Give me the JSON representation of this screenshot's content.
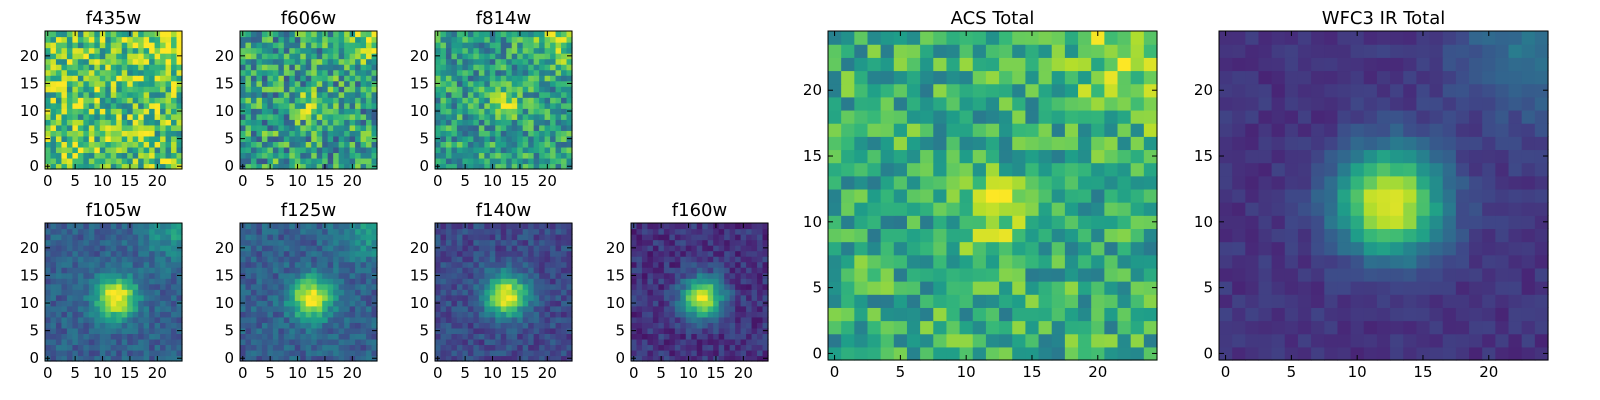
{
  "figure": {
    "colormap": "viridis",
    "colormap_stops": [
      "#440154",
      "#482878",
      "#3e4a89",
      "#31688e",
      "#26828e",
      "#1f9e89",
      "#35b779",
      "#6ece58",
      "#b5de2b",
      "#fde725"
    ],
    "background": "#ffffff"
  },
  "chart_data": [
    {
      "type": "heatmap",
      "title": "f435w",
      "xticks": [
        0,
        5,
        10,
        15,
        20
      ],
      "yticks": [
        0,
        5,
        10,
        15,
        20
      ],
      "xlim": [
        -0.5,
        24.5
      ],
      "ylim": [
        -0.5,
        24.5
      ],
      "grid": false,
      "image": {
        "size": [
          25,
          25
        ],
        "pattern": "noise",
        "center": [
          12,
          11
        ],
        "peak_value": 0.0,
        "source_width": 2.5,
        "noise_level": 0.3,
        "background_level": 0.72,
        "bright_corner": "top-right"
      }
    },
    {
      "type": "heatmap",
      "title": "f606w",
      "xticks": [
        0,
        5,
        10,
        15,
        20
      ],
      "yticks": [
        0,
        5,
        10,
        15,
        20
      ],
      "xlim": [
        -0.5,
        24.5
      ],
      "ylim": [
        -0.5,
        24.5
      ],
      "grid": false,
      "image": {
        "size": [
          25,
          25
        ],
        "pattern": "noise",
        "center": [
          12,
          11
        ],
        "peak_value": 0.2,
        "source_width": 2.0,
        "noise_level": 0.3,
        "background_level": 0.55,
        "bright_corner": "top-right"
      }
    },
    {
      "type": "heatmap",
      "title": "f814w",
      "xticks": [
        0,
        5,
        10,
        15,
        20
      ],
      "yticks": [
        0,
        5,
        10,
        15,
        20
      ],
      "xlim": [
        -0.5,
        24.5
      ],
      "ylim": [
        -0.5,
        24.5
      ],
      "grid": false,
      "image": {
        "size": [
          25,
          25
        ],
        "pattern": "point-source",
        "center": [
          12.5,
          11
        ],
        "peak_value": 0.45,
        "source_width": 1.6,
        "noise_level": 0.25,
        "background_level": 0.55,
        "bright_corner": "top-right"
      }
    },
    {
      "type": "heatmap",
      "title": "f105w",
      "xticks": [
        0,
        5,
        10,
        15,
        20
      ],
      "yticks": [
        0,
        5,
        10,
        15,
        20
      ],
      "xlim": [
        -0.5,
        24.5
      ],
      "ylim": [
        -0.5,
        24.5
      ],
      "grid": false,
      "image": {
        "size": [
          25,
          25
        ],
        "pattern": "point-source",
        "center": [
          12.5,
          11
        ],
        "peak_value": 0.75,
        "source_width": 2.6,
        "noise_level": 0.1,
        "background_level": 0.3,
        "bright_corner": "top-right"
      }
    },
    {
      "type": "heatmap",
      "title": "f125w",
      "xticks": [
        0,
        5,
        10,
        15,
        20
      ],
      "yticks": [
        0,
        5,
        10,
        15,
        20
      ],
      "xlim": [
        -0.5,
        24.5
      ],
      "ylim": [
        -0.5,
        24.5
      ],
      "grid": false,
      "image": {
        "size": [
          25,
          25
        ],
        "pattern": "point-source",
        "center": [
          12.5,
          11
        ],
        "peak_value": 0.75,
        "source_width": 2.6,
        "noise_level": 0.11,
        "background_level": 0.3,
        "bright_corner": "top-right"
      }
    },
    {
      "type": "heatmap",
      "title": "f140w",
      "xticks": [
        0,
        5,
        10,
        15,
        20
      ],
      "yticks": [
        0,
        5,
        10,
        15,
        20
      ],
      "xlim": [
        -0.5,
        24.5
      ],
      "ylim": [
        -0.5,
        24.5
      ],
      "grid": false,
      "image": {
        "size": [
          25,
          25
        ],
        "pattern": "point-source",
        "center": [
          12.5,
          11.5
        ],
        "peak_value": 0.78,
        "source_width": 2.7,
        "noise_level": 0.1,
        "background_level": 0.22,
        "bright_corner": "none"
      }
    },
    {
      "type": "heatmap",
      "title": "f160w",
      "xticks": [
        0,
        5,
        10,
        15,
        20
      ],
      "yticks": [
        0,
        5,
        10,
        15,
        20
      ],
      "xlim": [
        -0.5,
        24.5
      ],
      "ylim": [
        -0.5,
        24.5
      ],
      "grid": false,
      "image": {
        "size": [
          25,
          25
        ],
        "pattern": "point-source",
        "center": [
          12.5,
          11
        ],
        "peak_value": 0.82,
        "source_width": 2.6,
        "noise_level": 0.1,
        "background_level": 0.15,
        "bright_corner": "none"
      }
    },
    {
      "type": "heatmap",
      "title": "ACS Total",
      "xticks": [
        0,
        5,
        10,
        15,
        20
      ],
      "yticks": [
        0,
        5,
        10,
        15,
        20
      ],
      "xlim": [
        -0.5,
        24.5
      ],
      "ylim": [
        -0.5,
        24.5
      ],
      "grid": false,
      "image": {
        "size": [
          25,
          25
        ],
        "pattern": "point-source",
        "center": [
          12,
          11
        ],
        "peak_value": 0.3,
        "source_width": 1.8,
        "noise_level": 0.22,
        "background_level": 0.62,
        "bright_corner": "top-right"
      }
    },
    {
      "type": "heatmap",
      "title": "WFC3 IR Total",
      "xticks": [
        0,
        5,
        10,
        15,
        20
      ],
      "yticks": [
        0,
        5,
        10,
        15,
        20
      ],
      "xlim": [
        -0.5,
        24.5
      ],
      "ylim": [
        -0.5,
        24.5
      ],
      "grid": false,
      "image": {
        "size": [
          25,
          25
        ],
        "pattern": "point-source",
        "center": [
          12.5,
          11.5
        ],
        "peak_value": 0.85,
        "source_width": 2.8,
        "noise_level": 0.05,
        "background_level": 0.15,
        "bright_corner": "top-right"
      }
    }
  ]
}
